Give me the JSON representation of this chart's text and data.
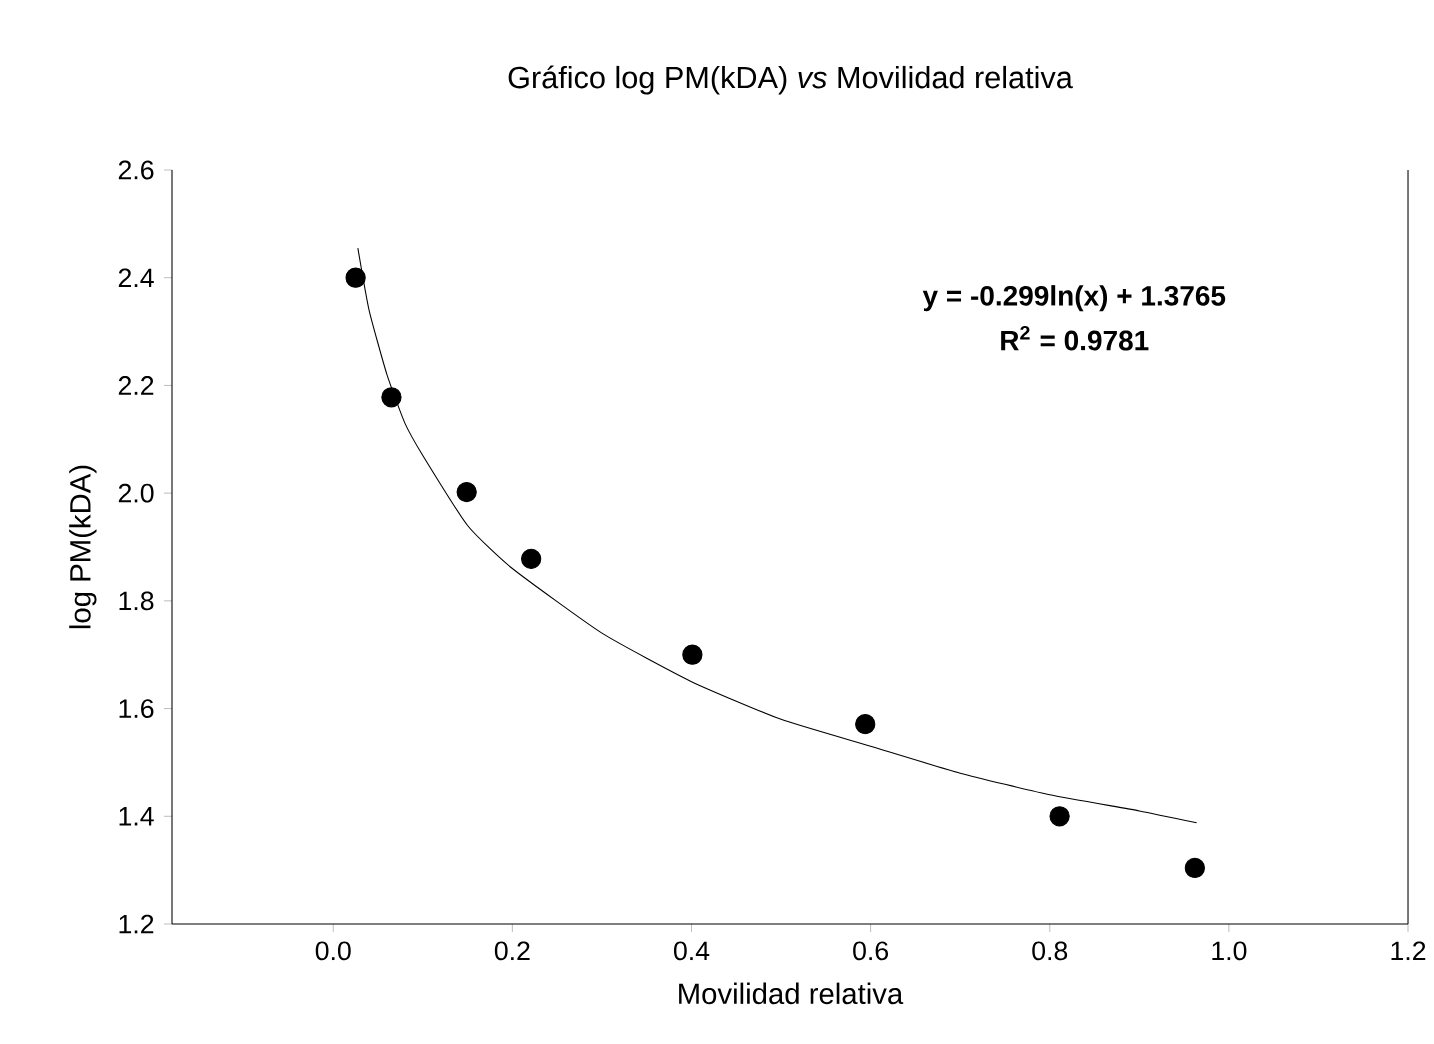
{
  "chart_data": {
    "type": "scatter",
    "title": "Gráfico log PM(kDA) *vs* Movilidad relativa",
    "xlabel": "Movilidad relativa",
    "ylabel": "log PM(kDA)",
    "xlim": [
      -0.18,
      1.2
    ],
    "ylim": [
      1.2,
      2.6
    ],
    "xticks": [
      {
        "value": 0.0,
        "label": "0.0"
      },
      0.2,
      0.4,
      0.6,
      0.8,
      {
        "value": 1.0,
        "label": "1.0"
      },
      1.2
    ],
    "yticks": [
      1.2,
      1.4,
      1.6,
      1.8,
      {
        "value": 2.0,
        "label": "2.0"
      },
      2.2,
      2.4,
      2.6
    ],
    "grid": false,
    "annotations": [
      "**y = -0.299ln(x) + 1.3765**",
      "**R$^{2}$ = 0.9781**"
    ],
    "series": [
      {
        "color": "#000000",
        "marker": "circle",
        "x": [
          0.025,
          0.065,
          0.149,
          0.221,
          0.401,
          0.594,
          0.811,
          0.962
        ],
        "values": [
          2.4,
          2.178,
          2.002,
          1.878,
          1.7,
          1.571,
          1.4,
          1.304
        ]
      },
      {
        "type": "line",
        "marker": "none",
        "color": "#000000",
        "x": [
          0.0275,
          0.04,
          0.06,
          0.08,
          0.1,
          0.15,
          0.2,
          0.3,
          0.4,
          0.5,
          0.6,
          0.7,
          0.8,
          0.9,
          0.964
        ],
        "values": [
          2.455,
          2.34,
          2.22,
          2.13,
          2.07,
          1.94,
          1.86,
          1.74,
          1.65,
          1.58,
          1.53,
          1.48,
          1.44,
          1.41,
          1.388
        ]
      }
    ]
  }
}
